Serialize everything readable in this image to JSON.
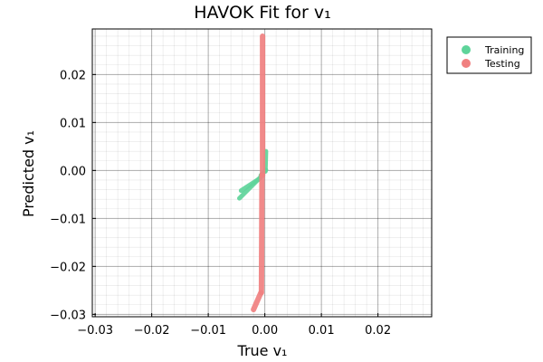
{
  "chart_data": {
    "type": "scatter",
    "title": "HAVOK Fit for v₁",
    "xlabel": "True v₁",
    "ylabel": "Predicted v₁",
    "xlim": [
      -0.0305,
      0.0295
    ],
    "ylim": [
      -0.0305,
      0.0295
    ],
    "xticks": [
      -0.03,
      -0.02,
      -0.01,
      0.0,
      0.01,
      0.02
    ],
    "yticks": [
      -0.03,
      -0.02,
      -0.01,
      0.0,
      0.01,
      0.02
    ],
    "xtick_labels": [
      "−0.03",
      "−0.02",
      "−0.01",
      "0.00",
      "0.01",
      "0.02"
    ],
    "ytick_labels": [
      "−0.03",
      "−0.02",
      "−0.01",
      "0.00",
      "0.01",
      "0.02"
    ],
    "grid": true,
    "minor_grid": true,
    "legend_position": "outside-top-right",
    "series": [
      {
        "name": "Training",
        "color": "#5ed49a",
        "segments": [
          {
            "x0": -0.0045,
            "y0": -0.0058,
            "x1": -0.0006,
            "y1": -0.0012
          },
          {
            "x0": -0.0042,
            "y0": -0.0042,
            "x1": -0.0008,
            "y1": -0.0016
          },
          {
            "x0": -0.0007,
            "y0": -0.001,
            "x1": 0.0002,
            "y1": 0.0001
          },
          {
            "x0": 0.0001,
            "y0": -0.0002,
            "x1": 0.0002,
            "y1": 0.004
          }
        ]
      },
      {
        "name": "Testing",
        "color": "#f08080",
        "segments": [
          {
            "x0": -0.0004,
            "y0": 0.028,
            "x1": -0.0004,
            "y1": -0.001
          },
          {
            "x0": -0.0005,
            "y0": -0.001,
            "x1": -0.0006,
            "y1": -0.0255
          },
          {
            "x0": -0.0007,
            "y0": -0.0255,
            "x1": -0.002,
            "y1": -0.029
          }
        ]
      }
    ]
  }
}
